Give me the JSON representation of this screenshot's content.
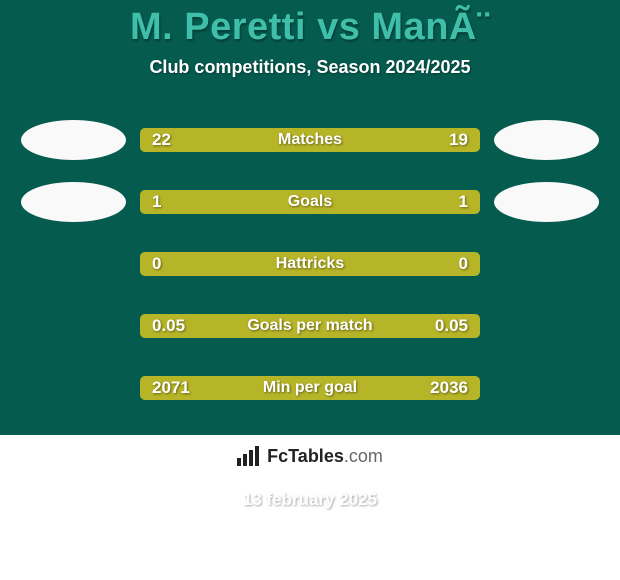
{
  "background_color": "#065b4f",
  "bar_background_color": "#7a8a23",
  "title": "M. Peretti vs ManÃ¨",
  "title_color": "#3fbfa9",
  "subtitle": "Club competitions, Season 2024/2025",
  "date": "13 february 2025",
  "avatar_color": "#f9f9f9",
  "logo_text_main": "FcTables",
  "logo_text_domain": ".com",
  "stats": [
    {
      "label": "Matches",
      "left_value": "22",
      "right_value": "19",
      "left_num": 22,
      "right_num": 19,
      "left_color": "#b6b427",
      "right_color": "#b6b427",
      "show_avatars": true
    },
    {
      "label": "Goals",
      "left_value": "1",
      "right_value": "1",
      "left_num": 1,
      "right_num": 1,
      "left_color": "#b6b427",
      "right_color": "#b6b427",
      "show_avatars": true
    },
    {
      "label": "Hattricks",
      "left_value": "0",
      "right_value": "0",
      "left_num": 0,
      "right_num": 0,
      "left_color": "#b6b427",
      "right_color": "#b6b427",
      "show_avatars": false
    },
    {
      "label": "Goals per match",
      "left_value": "0.05",
      "right_value": "0.05",
      "left_num": 0.05,
      "right_num": 0.05,
      "left_color": "#b6b427",
      "right_color": "#b6b427",
      "show_avatars": false
    },
    {
      "label": "Min per goal",
      "left_value": "2071",
      "right_value": "2036",
      "left_num": 2071,
      "right_num": 2036,
      "left_color": "#b6b427",
      "right_color": "#b6b427",
      "show_avatars": false
    }
  ]
}
